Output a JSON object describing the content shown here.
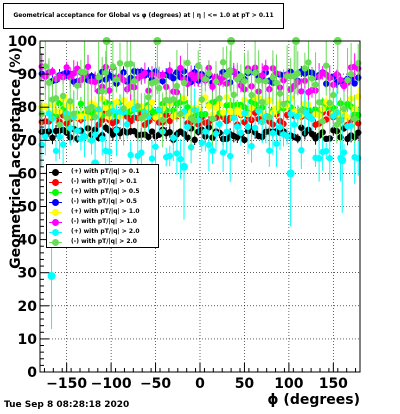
{
  "title": "Geometrical acceptance for Global vs φ (degrees) at | η | <= 1.0 at pT > 0.11",
  "timestamp": "Tue Sep  8 08:28:18 2020",
  "chart_data": {
    "type": "scatter",
    "xlabel": "ϕ (degrees)",
    "ylabel": "Geometrical acceptance (%)",
    "xlim": [
      -180,
      180
    ],
    "ylim": [
      0,
      100
    ],
    "xticks": [
      -150,
      -100,
      -50,
      0,
      50,
      100,
      150
    ],
    "yticks": [
      0,
      10,
      20,
      30,
      40,
      50,
      60,
      70,
      80,
      90,
      100
    ],
    "grid": true,
    "legend_position": "middle-left",
    "series": [
      {
        "name": "(+) with pT/|q| > 0.1",
        "color": "#000000",
        "mean": 72,
        "spread": 1.2,
        "err": 1.5
      },
      {
        "name": "(-) with pT/|q| > 0.1",
        "color": "#ff0000",
        "mean": 76.5,
        "spread": 1.2,
        "err": 1.5
      },
      {
        "name": "(+) with pT/|q| > 0.5",
        "color": "#00ff00",
        "mean": 79.5,
        "spread": 1.5,
        "err": 2
      },
      {
        "name": "(-) with pT/|q| > 0.5",
        "color": "#0000ff",
        "mean": 89,
        "spread": 1.2,
        "err": 1.5
      },
      {
        "name": "(+) with pT/|q| > 1.0",
        "color": "#ffff00",
        "mean": 80,
        "spread": 2,
        "err": 2.5
      },
      {
        "name": "(-) with pT/|q| > 1.0",
        "color": "#ff00ff",
        "mean": 88.5,
        "spread": 2.5,
        "err": 3
      },
      {
        "name": "(+) with pT/|q| > 2.0",
        "color": "#00ffff",
        "mean": 72,
        "spread": 5,
        "err": 6
      },
      {
        "name": "(-) with pT/|q| > 2.0",
        "color": "#66dd55",
        "mean": 84,
        "spread": 6,
        "err": 8
      }
    ],
    "outliers": [
      {
        "series": 6,
        "x": -167,
        "y": 29
      },
      {
        "series": 6,
        "x": -118,
        "y": 63
      },
      {
        "series": 6,
        "x": -18,
        "y": 62
      },
      {
        "series": 6,
        "x": 102,
        "y": 60
      },
      {
        "series": 6,
        "x": 160,
        "y": 64
      },
      {
        "series": 7,
        "x": -105,
        "y": 100
      },
      {
        "series": 7,
        "x": -48,
        "y": 100
      },
      {
        "series": 7,
        "x": 35,
        "y": 100
      },
      {
        "series": 7,
        "x": 108,
        "y": 100
      },
      {
        "series": 7,
        "x": 155,
        "y": 100
      }
    ]
  }
}
